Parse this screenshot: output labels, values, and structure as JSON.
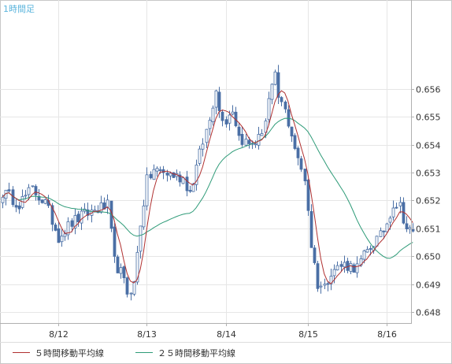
{
  "chart_data": {
    "type": "candlestick",
    "timeframe_label": "1時間足",
    "x_tick_labels": [
      "8/12",
      "8/13",
      "8/14",
      "8/15",
      "8/16"
    ],
    "y_ticks": [
      0.648,
      0.649,
      0.65,
      0.651,
      0.652,
      0.653,
      0.654,
      0.655,
      0.656
    ],
    "y_tick_labels": [
      "0.648",
      "0.649",
      "0.650",
      "0.651",
      "0.652",
      "0.653",
      "0.654",
      "0.655",
      "0.656"
    ],
    "ylim": [
      0.6476,
      0.6592
    ],
    "grid": true,
    "legend_position": "bottom-left",
    "candle_colors": {
      "up": "#ffffff",
      "down": "#4a6fa5",
      "border": "#4a6fa5"
    },
    "series": [
      {
        "name": "５時間移動平均線",
        "color": "#b03030"
      },
      {
        "name": "２５時間移動平均線",
        "color": "#2e9b78"
      }
    ],
    "anchors": [
      {
        "x": 0,
        "y": 0.6523
      },
      {
        "x": 5,
        "y": 0.6519
      },
      {
        "x": 9,
        "y": 0.6524
      },
      {
        "x": 13,
        "y": 0.6519
      },
      {
        "x": 17,
        "y": 0.6507
      },
      {
        "x": 21,
        "y": 0.6512
      },
      {
        "x": 25,
        "y": 0.6515
      },
      {
        "x": 29,
        "y": 0.6517
      },
      {
        "x": 32,
        "y": 0.6518
      },
      {
        "x": 34,
        "y": 0.6498
      },
      {
        "x": 36,
        "y": 0.6494
      },
      {
        "x": 38,
        "y": 0.6487
      },
      {
        "x": 40,
        "y": 0.649
      },
      {
        "x": 42,
        "y": 0.6512
      },
      {
        "x": 44,
        "y": 0.6527
      },
      {
        "x": 46,
        "y": 0.6531
      },
      {
        "x": 52,
        "y": 0.6529
      },
      {
        "x": 55,
        "y": 0.6528
      },
      {
        "x": 57,
        "y": 0.6523
      },
      {
        "x": 61,
        "y": 0.6541
      },
      {
        "x": 63,
        "y": 0.6549
      },
      {
        "x": 65,
        "y": 0.6561
      },
      {
        "x": 66,
        "y": 0.6552
      },
      {
        "x": 68,
        "y": 0.6549
      },
      {
        "x": 70,
        "y": 0.6553
      },
      {
        "x": 72,
        "y": 0.6543
      },
      {
        "x": 75,
        "y": 0.654
      },
      {
        "x": 78,
        "y": 0.6542
      },
      {
        "x": 80,
        "y": 0.6549
      },
      {
        "x": 81,
        "y": 0.6556
      },
      {
        "x": 83,
        "y": 0.6564
      },
      {
        "x": 84,
        "y": 0.6557
      },
      {
        "x": 86,
        "y": 0.6552
      },
      {
        "x": 88,
        "y": 0.6544
      },
      {
        "x": 90,
        "y": 0.6534
      },
      {
        "x": 92,
        "y": 0.6528
      },
      {
        "x": 93,
        "y": 0.6517
      },
      {
        "x": 94,
        "y": 0.6504
      },
      {
        "x": 95,
        "y": 0.6497
      },
      {
        "x": 96,
        "y": 0.649
      },
      {
        "x": 98,
        "y": 0.6489
      },
      {
        "x": 100,
        "y": 0.6495
      },
      {
        "x": 104,
        "y": 0.6497
      },
      {
        "x": 108,
        "y": 0.6496
      },
      {
        "x": 110,
        "y": 0.65
      },
      {
        "x": 113,
        "y": 0.6505
      },
      {
        "x": 115,
        "y": 0.6507
      },
      {
        "x": 117,
        "y": 0.6512
      },
      {
        "x": 119,
        "y": 0.6519
      },
      {
        "x": 121,
        "y": 0.6518
      },
      {
        "x": 123,
        "y": 0.651
      },
      {
        "x": 125,
        "y": 0.6508
      }
    ]
  }
}
